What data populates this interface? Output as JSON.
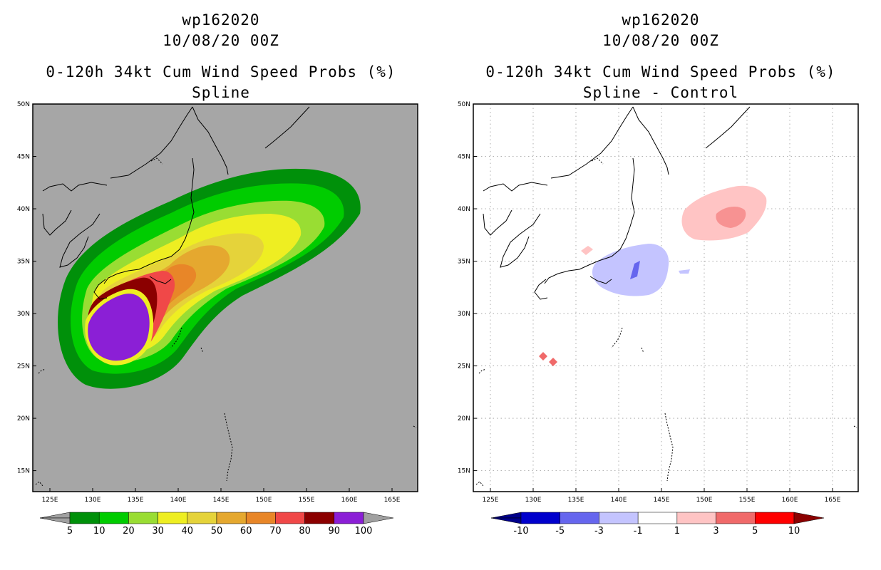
{
  "left_panel": {
    "storm_id": "wp162020",
    "datetime": "10/08/20 00Z",
    "product": "0-120h 34kt Cum Wind Speed Probs (%)",
    "subtitle": "Spline",
    "colorbar": {
      "levels": [
        "5",
        "10",
        "20",
        "30",
        "40",
        "50",
        "60",
        "70",
        "80",
        "90",
        "100"
      ],
      "colors": [
        "#00900a",
        "#00cc00",
        "#99dd33",
        "#eeee22",
        "#e5d33a",
        "#e5a82f",
        "#e88628",
        "#f04848",
        "#8b0000",
        "#8b1fd6"
      ],
      "under_color": "#a0a0a0",
      "over_color": "#a0a0a0"
    }
  },
  "right_panel": {
    "storm_id": "wp162020",
    "datetime": "10/08/20 00Z",
    "product": "0-120h 34kt Cum Wind Speed Probs (%)",
    "subtitle": "Spline - Control",
    "colorbar": {
      "levels": [
        "-10",
        "-5",
        "-3",
        "-1",
        "1",
        "3",
        "5",
        "10"
      ],
      "colors": [
        "#0000cc",
        "#6666ee",
        "#c4c4ff",
        "#ffffff",
        "#ffc4c4",
        "#f06a6a",
        "#ff0000"
      ],
      "under_color": "#00008b",
      "over_color": "#8b0000"
    }
  },
  "axes": {
    "lat_labels": [
      "50N",
      "45N",
      "40N",
      "35N",
      "30N",
      "25N",
      "20N",
      "15N"
    ],
    "lon_labels": [
      "125E",
      "130E",
      "135E",
      "140E",
      "145E",
      "150E",
      "155E",
      "160E",
      "165E"
    ],
    "lat_range": [
      13,
      50
    ],
    "lon_range": [
      123,
      168
    ]
  },
  "colors": {
    "land_background_left": "#a6a6a6",
    "grid_dots": "#999999"
  }
}
